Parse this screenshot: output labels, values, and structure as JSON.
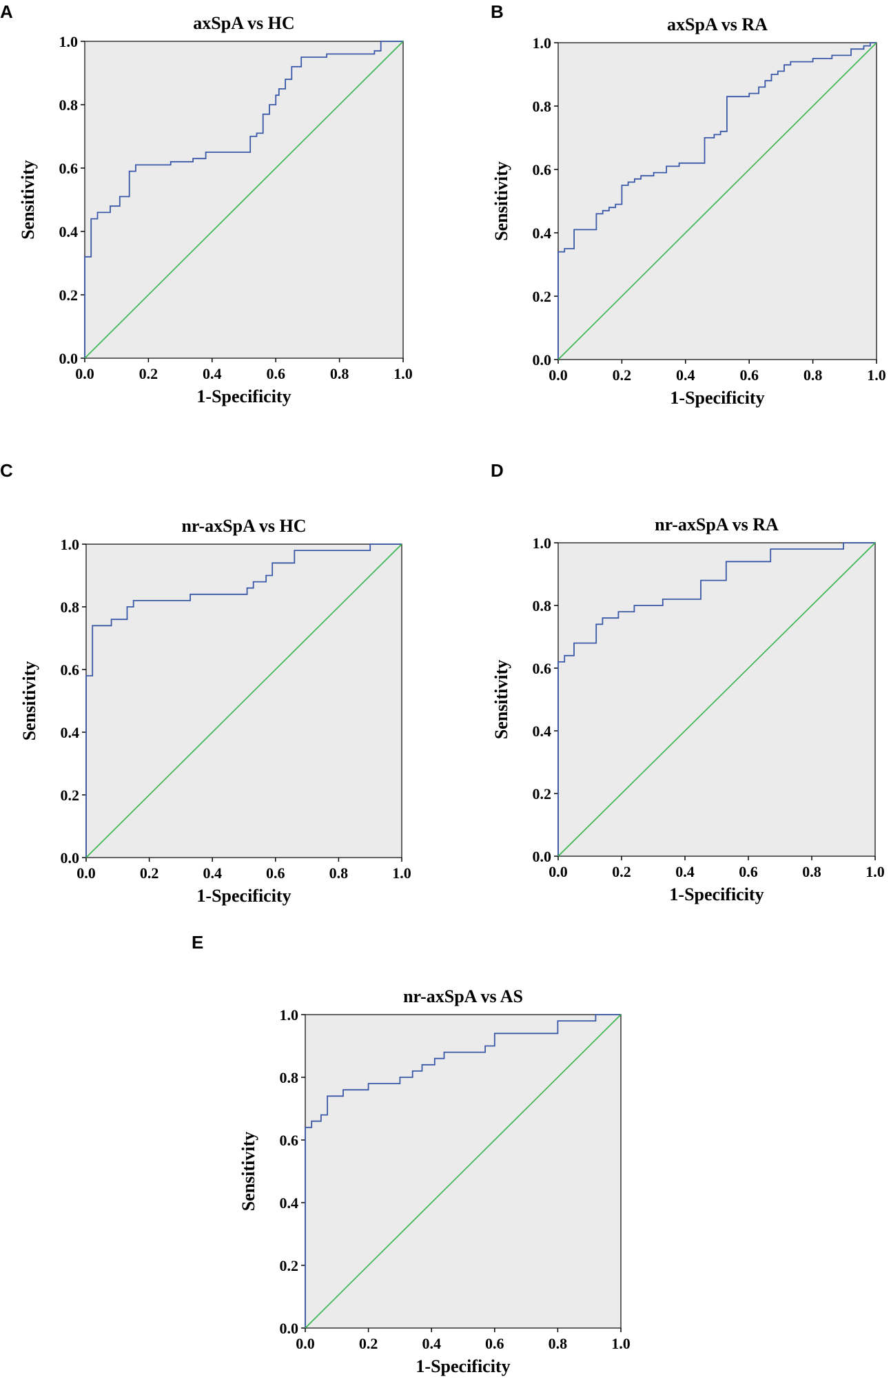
{
  "chart_data": [
    {
      "panel": "A",
      "type": "line",
      "title": "axSpA vs HC",
      "xlabel": "1-Specificity",
      "ylabel": "Sensitivity",
      "xlim": [
        0,
        1
      ],
      "ylim": [
        0,
        1
      ],
      "xticks": [
        "0.0",
        "0.2",
        "0.4",
        "0.6",
        "0.8",
        "1.0"
      ],
      "yticks": [
        "0.0",
        "0.2",
        "0.4",
        "0.6",
        "0.8",
        "1.0"
      ],
      "series": [
        {
          "name": "ROC curve",
          "x": [
            0,
            0,
            0.02,
            0.02,
            0.04,
            0.04,
            0.08,
            0.08,
            0.11,
            0.11,
            0.14,
            0.14,
            0.16,
            0.16,
            0.27,
            0.27,
            0.34,
            0.34,
            0.38,
            0.38,
            0.52,
            0.52,
            0.54,
            0.54,
            0.56,
            0.56,
            0.58,
            0.58,
            0.6,
            0.6,
            0.61,
            0.61,
            0.63,
            0.63,
            0.65,
            0.65,
            0.68,
            0.68,
            0.76,
            0.76,
            0.91,
            0.91,
            0.93,
            0.93,
            1.0
          ],
          "y": [
            0,
            0.32,
            0.32,
            0.44,
            0.44,
            0.46,
            0.46,
            0.48,
            0.48,
            0.51,
            0.51,
            0.59,
            0.59,
            0.61,
            0.61,
            0.62,
            0.62,
            0.63,
            0.63,
            0.65,
            0.65,
            0.7,
            0.7,
            0.71,
            0.71,
            0.77,
            0.77,
            0.8,
            0.8,
            0.83,
            0.83,
            0.85,
            0.85,
            0.88,
            0.88,
            0.92,
            0.92,
            0.95,
            0.95,
            0.96,
            0.96,
            0.97,
            0.97,
            1.0,
            1.0
          ]
        },
        {
          "name": "Reference line",
          "x": [
            0,
            1
          ],
          "y": [
            0,
            1
          ]
        }
      ]
    },
    {
      "panel": "B",
      "type": "line",
      "title": "axSpA vs RA",
      "xlabel": "1-Specificity",
      "ylabel": "Sensitivity",
      "xlim": [
        0,
        1
      ],
      "ylim": [
        0,
        1
      ],
      "xticks": [
        "0.0",
        "0.2",
        "0.4",
        "0.6",
        "0.8",
        "1.0"
      ],
      "yticks": [
        "0.0",
        "0.2",
        "0.4",
        "0.6",
        "0.8",
        "1.0"
      ],
      "series": [
        {
          "name": "ROC curve",
          "x": [
            0,
            0,
            0.02,
            0.02,
            0.05,
            0.05,
            0.12,
            0.12,
            0.14,
            0.14,
            0.16,
            0.16,
            0.18,
            0.18,
            0.2,
            0.2,
            0.22,
            0.22,
            0.24,
            0.24,
            0.26,
            0.26,
            0.3,
            0.3,
            0.34,
            0.34,
            0.38,
            0.38,
            0.46,
            0.46,
            0.49,
            0.49,
            0.51,
            0.51,
            0.53,
            0.53,
            0.6,
            0.6,
            0.63,
            0.63,
            0.65,
            0.65,
            0.67,
            0.67,
            0.69,
            0.69,
            0.71,
            0.71,
            0.73,
            0.73,
            0.8,
            0.8,
            0.86,
            0.86,
            0.92,
            0.92,
            0.96,
            0.96,
            0.98,
            0.98,
            1.0
          ],
          "y": [
            0,
            0.34,
            0.34,
            0.35,
            0.35,
            0.41,
            0.41,
            0.46,
            0.46,
            0.47,
            0.47,
            0.48,
            0.48,
            0.49,
            0.49,
            0.55,
            0.55,
            0.56,
            0.56,
            0.57,
            0.57,
            0.58,
            0.58,
            0.59,
            0.59,
            0.61,
            0.61,
            0.62,
            0.62,
            0.7,
            0.7,
            0.71,
            0.71,
            0.72,
            0.72,
            0.83,
            0.83,
            0.84,
            0.84,
            0.86,
            0.86,
            0.88,
            0.88,
            0.9,
            0.9,
            0.91,
            0.91,
            0.93,
            0.93,
            0.94,
            0.94,
            0.95,
            0.95,
            0.96,
            0.96,
            0.98,
            0.98,
            0.99,
            0.99,
            1.0,
            1.0
          ]
        },
        {
          "name": "Reference line",
          "x": [
            0,
            1
          ],
          "y": [
            0,
            1
          ]
        }
      ]
    },
    {
      "panel": "C",
      "type": "line",
      "title": "nr-axSpA vs HC",
      "xlabel": "1-Specificity",
      "ylabel": "Sensitivity",
      "xlim": [
        0,
        1
      ],
      "ylim": [
        0,
        1
      ],
      "xticks": [
        "0.0",
        "0.2",
        "0.4",
        "0.6",
        "0.8",
        "1.0"
      ],
      "yticks": [
        "0.0",
        "0.2",
        "0.4",
        "0.6",
        "0.8",
        "1.0"
      ],
      "series": [
        {
          "name": "ROC curve",
          "x": [
            0,
            0,
            0.02,
            0.02,
            0.08,
            0.08,
            0.13,
            0.13,
            0.15,
            0.15,
            0.33,
            0.33,
            0.51,
            0.51,
            0.53,
            0.53,
            0.57,
            0.57,
            0.59,
            0.59,
            0.66,
            0.66,
            0.9,
            0.9,
            1.0
          ],
          "y": [
            0,
            0.58,
            0.58,
            0.74,
            0.74,
            0.76,
            0.76,
            0.8,
            0.8,
            0.82,
            0.82,
            0.84,
            0.84,
            0.86,
            0.86,
            0.88,
            0.88,
            0.9,
            0.9,
            0.94,
            0.94,
            0.98,
            0.98,
            1.0,
            1.0
          ]
        },
        {
          "name": "Reference line",
          "x": [
            0,
            1
          ],
          "y": [
            0,
            1
          ]
        }
      ]
    },
    {
      "panel": "D",
      "type": "line",
      "title": "nr-axSpA vs RA",
      "xlabel": "1-Specificity",
      "ylabel": "Sensitivity",
      "xlim": [
        0,
        1
      ],
      "ylim": [
        0,
        1
      ],
      "xticks": [
        "0.0",
        "0.2",
        "0.4",
        "0.6",
        "0.8",
        "1.0"
      ],
      "yticks": [
        "0.0",
        "0.2",
        "0.4",
        "0.6",
        "0.8",
        "1.0"
      ],
      "series": [
        {
          "name": "ROC curve",
          "x": [
            0,
            0,
            0.02,
            0.02,
            0.05,
            0.05,
            0.12,
            0.12,
            0.14,
            0.14,
            0.19,
            0.19,
            0.24,
            0.24,
            0.33,
            0.33,
            0.45,
            0.45,
            0.53,
            0.53,
            0.67,
            0.67,
            0.9,
            0.9,
            1.0
          ],
          "y": [
            0,
            0.62,
            0.62,
            0.64,
            0.64,
            0.68,
            0.68,
            0.74,
            0.74,
            0.76,
            0.76,
            0.78,
            0.78,
            0.8,
            0.8,
            0.82,
            0.82,
            0.88,
            0.88,
            0.94,
            0.94,
            0.98,
            0.98,
            1.0,
            1.0
          ]
        },
        {
          "name": "Reference line",
          "x": [
            0,
            1
          ],
          "y": [
            0,
            1
          ]
        }
      ]
    },
    {
      "panel": "E",
      "type": "line",
      "title": "nr-axSpA vs AS",
      "xlabel": "1-Specificity",
      "ylabel": "Sensitivity",
      "xlim": [
        0,
        1
      ],
      "ylim": [
        0,
        1
      ],
      "xticks": [
        "0.0",
        "0.2",
        "0.4",
        "0.6",
        "0.8",
        "1.0"
      ],
      "yticks": [
        "0.0",
        "0.2",
        "0.4",
        "0.6",
        "0.8",
        "1.0"
      ],
      "series": [
        {
          "name": "ROC curve",
          "x": [
            0,
            0,
            0.02,
            0.02,
            0.05,
            0.05,
            0.07,
            0.07,
            0.12,
            0.12,
            0.2,
            0.2,
            0.3,
            0.3,
            0.34,
            0.34,
            0.37,
            0.37,
            0.41,
            0.41,
            0.44,
            0.44,
            0.57,
            0.57,
            0.6,
            0.6,
            0.8,
            0.8,
            0.92,
            0.92,
            1.0
          ],
          "y": [
            0,
            0.64,
            0.64,
            0.66,
            0.66,
            0.68,
            0.68,
            0.74,
            0.74,
            0.76,
            0.76,
            0.78,
            0.78,
            0.8,
            0.8,
            0.82,
            0.82,
            0.84,
            0.84,
            0.86,
            0.86,
            0.88,
            0.88,
            0.9,
            0.9,
            0.94,
            0.94,
            0.98,
            0.98,
            1.0,
            1.0
          ]
        },
        {
          "name": "Reference line",
          "x": [
            0,
            1
          ],
          "y": [
            0,
            1
          ]
        }
      ]
    }
  ],
  "colors": {
    "roc_line": "#3a58a8",
    "reference_line": "#34b34a",
    "plot_background": "#ebebeb"
  }
}
